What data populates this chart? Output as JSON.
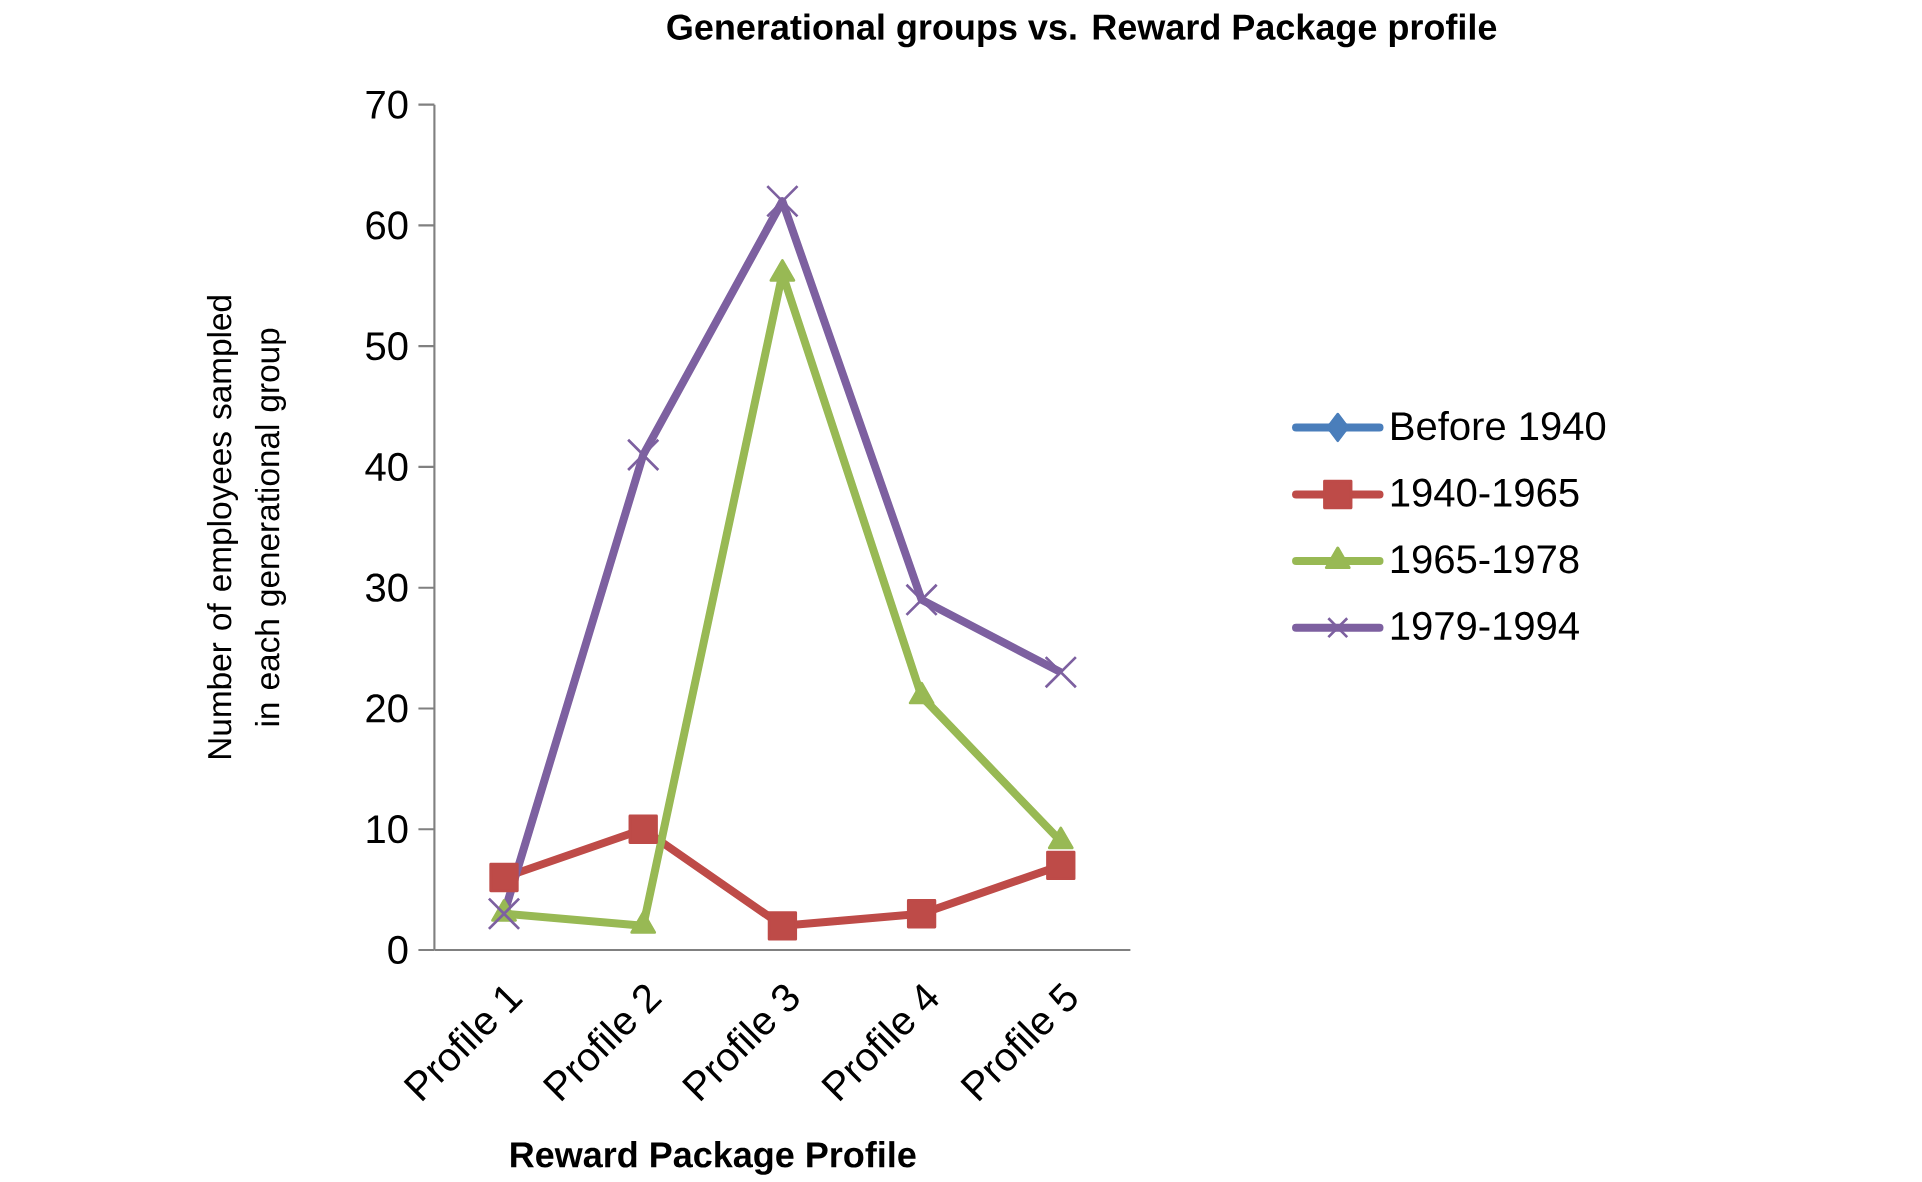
{
  "chart_data": {
    "type": "line",
    "title": "Generational groups vs. Reward Package profile",
    "xlabel": "Reward Package Profile",
    "ylabel": "Number of employees sampled in each generational group",
    "categories": [
      "Profile 1",
      "Profile 2",
      "Profile 3",
      "Profile 4",
      "Profile 5"
    ],
    "series": [
      {
        "name": "Before 1940",
        "color": "#4a7ebb",
        "marker": "diamond",
        "values": [
          null,
          null,
          null,
          null,
          null
        ]
      },
      {
        "name": "1940-1965",
        "color": "#be4b48",
        "marker": "square",
        "values": [
          6,
          10,
          2,
          3,
          7
        ]
      },
      {
        "name": "1965-1978",
        "color": "#98b954",
        "marker": "triangle",
        "values": [
          3,
          2,
          56,
          21,
          9
        ]
      },
      {
        "name": "1979-1994",
        "color": "#7d60a0",
        "marker": "cross",
        "values": [
          3,
          41,
          62,
          29,
          23
        ]
      }
    ],
    "ylim": [
      0,
      70
    ],
    "yticks": [
      0,
      10,
      20,
      30,
      40,
      50,
      60,
      70
    ],
    "grid": false,
    "legend": "right",
    "line_style": "solid"
  }
}
